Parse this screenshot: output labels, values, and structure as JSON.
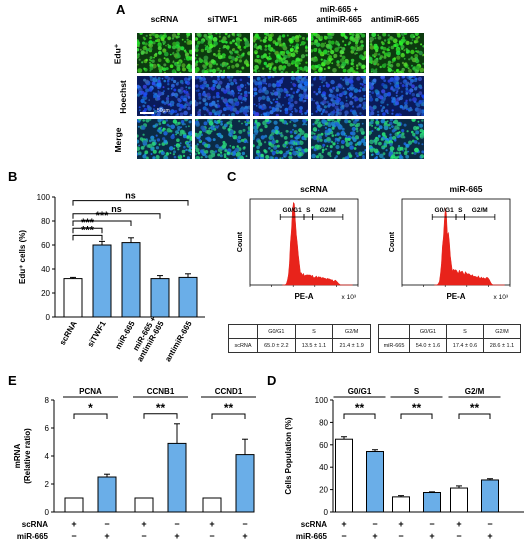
{
  "panels": {
    "A": "A",
    "B": "B",
    "C": "C",
    "D": "D",
    "E": "E"
  },
  "micro": {
    "columns": [
      "scRNA",
      "siTWF1",
      "miR-665",
      "miR-665 +\nantimiR-665",
      "antimiR-665"
    ],
    "rows": [
      "Edu⁺",
      "Hoechst",
      "Merge"
    ],
    "scalebar_label": "50μm"
  },
  "cytometry": {
    "gate_labels": [
      "G0/G1",
      "S",
      "G2/M"
    ],
    "ylabel": "Count",
    "xlabel": "PE-A",
    "x_exponent": "x 10³",
    "plots": [
      {
        "title": "scRNA",
        "row_label": "scRNA",
        "values": [
          "65.0 ± 2.2",
          "13.5 ± 1.1",
          "21.4 ± 1.9"
        ]
      },
      {
        "title": "miR-665",
        "row_label": "miR-665",
        "values": [
          "54.0 ± 1.6",
          "17.4 ± 0.6",
          "28.6 ± 1.1"
        ]
      }
    ]
  },
  "group_labels": {
    "row1": "scRNA",
    "row2": "miR-665",
    "plus": "+",
    "minus": "−"
  },
  "colors": {
    "control": "#ffffff",
    "treated": "#6aaee8",
    "edu": "#1f9a2b",
    "hoechst": "#1740b8",
    "hist": "#e8231b"
  },
  "chart_data": [
    {
      "panel": "B",
      "type": "bar",
      "categories": [
        "scRNA",
        "siTWF1",
        "miR-665",
        "miR-665 +\nantimiR-665",
        "antimiR-665"
      ],
      "values": [
        32,
        60,
        62,
        32,
        33
      ],
      "errors": [
        1,
        3,
        4,
        2.5,
        3
      ],
      "ylabel": "Edu⁺ cells (%)",
      "ylim": [
        0,
        100
      ],
      "yticks": [
        0,
        20,
        40,
        60,
        80,
        100
      ],
      "significance": [
        "ns",
        "ns",
        "***",
        "***",
        "***"
      ]
    },
    {
      "panel": "E",
      "type": "bar",
      "groups": [
        "PCNA",
        "CCNB1",
        "CCND1"
      ],
      "series": [
        {
          "name": "scRNA",
          "values": [
            1,
            1,
            1
          ],
          "errors": [
            0,
            0,
            0
          ]
        },
        {
          "name": "miR-665",
          "values": [
            2.5,
            4.9,
            4.1
          ],
          "errors": [
            0.2,
            1.4,
            1.1
          ]
        }
      ],
      "ylabel": "mRNA\n(Relative ratio)",
      "ylim": [
        0,
        8
      ],
      "yticks": [
        0,
        2,
        4,
        6,
        8
      ],
      "significance": [
        "*",
        "**",
        "**"
      ]
    },
    {
      "panel": "D",
      "type": "bar",
      "groups": [
        "G0/G1",
        "S",
        "G2/M"
      ],
      "series": [
        {
          "name": "scRNA",
          "values": [
            65,
            13.5,
            21.4
          ],
          "errors": [
            2.2,
            1.1,
            1.9
          ]
        },
        {
          "name": "miR-665",
          "values": [
            54,
            17.4,
            28.6
          ],
          "errors": [
            1.6,
            0.6,
            1.1
          ]
        }
      ],
      "ylabel": "Cells Population (%)",
      "ylim": [
        0,
        100
      ],
      "yticks": [
        0,
        20,
        40,
        60,
        80,
        100
      ],
      "significance": [
        "**",
        "**",
        "**"
      ]
    }
  ]
}
